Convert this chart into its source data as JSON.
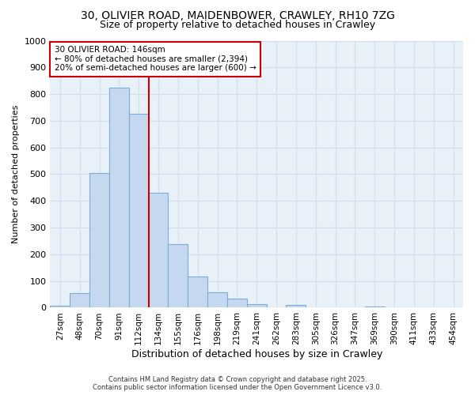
{
  "title_line1": "30, OLIVIER ROAD, MAIDENBOWER, CRAWLEY, RH10 7ZG",
  "title_line2": "Size of property relative to detached houses in Crawley",
  "xlabel": "Distribution of detached houses by size in Crawley",
  "ylabel": "Number of detached properties",
  "bar_color": "#c5d8f0",
  "bar_edge_color": "#7aaed6",
  "grid_color": "#d0dff0",
  "background_color": "#e8f0f8",
  "fig_background": "#ffffff",
  "categories": [
    "27sqm",
    "48sqm",
    "70sqm",
    "91sqm",
    "112sqm",
    "134sqm",
    "155sqm",
    "176sqm",
    "198sqm",
    "219sqm",
    "241sqm",
    "262sqm",
    "283sqm",
    "305sqm",
    "326sqm",
    "347sqm",
    "369sqm",
    "390sqm",
    "411sqm",
    "433sqm",
    "454sqm"
  ],
  "values": [
    8,
    55,
    505,
    825,
    725,
    430,
    238,
    118,
    57,
    35,
    12,
    0,
    10,
    0,
    0,
    0,
    4,
    0,
    0,
    0,
    0
  ],
  "ylim": [
    0,
    1000
  ],
  "yticks": [
    0,
    100,
    200,
    300,
    400,
    500,
    600,
    700,
    800,
    900,
    1000
  ],
  "annotation_title": "30 OLIVIER ROAD: 146sqm",
  "annotation_line1": "← 80% of detached houses are smaller (2,394)",
  "annotation_line2": "20% of semi-detached houses are larger (600) →",
  "vline_color": "#cc0000",
  "annotation_box_color": "#ffffff",
  "annotation_box_edge": "#cc0000",
  "vline_index": 4.5,
  "footer_line1": "Contains HM Land Registry data © Crown copyright and database right 2025.",
  "footer_line2": "Contains public sector information licensed under the Open Government Licence v3.0."
}
